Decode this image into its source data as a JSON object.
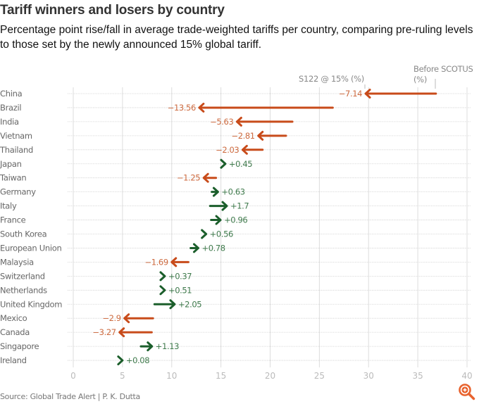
{
  "header": {
    "title": "Tariff winners and losers by country",
    "subtitle": "Percentage point rise/fall in average trade-weighted tariffs per country, comparing pre-ruling levels to those set by the newly announced 15% global tariff."
  },
  "footer": {
    "source": "Source: Global Trade Alert | P. K. Dutta",
    "zoom_icon": "zoom-in-icon"
  },
  "colors": {
    "increase": "#1b5e2b",
    "decrease": "#c84b1a",
    "increase_text": "#3f7a4c",
    "decrease_text": "#cd6a3f",
    "gridline": "#dddddd"
  },
  "chart_data": {
    "type": "arrow",
    "title": "Tariff winners and losers by country",
    "xlabel": "",
    "ylabel": "",
    "xlim": [
      0,
      40
    ],
    "xticks": [
      "0",
      "5",
      "10",
      "15",
      "20",
      "25",
      "30",
      "35",
      "40"
    ],
    "xtick_values": [
      0,
      5,
      10,
      15,
      20,
      25,
      30,
      35,
      40
    ],
    "grid": true,
    "series_labels": {
      "after": "S122 @ 15% (%)",
      "before": "Before SCOTUS (%)",
      "before_line1": "Before SCOTUS",
      "before_line2": "(%)"
    },
    "rows": [
      {
        "country": "China",
        "before": 36.84,
        "after": 29.7,
        "change": "−7.14"
      },
      {
        "country": "Brazil",
        "before": 26.36,
        "after": 12.8,
        "change": "−13.56"
      },
      {
        "country": "India",
        "before": 22.26,
        "after": 16.63,
        "change": "−5.63"
      },
      {
        "country": "Vietnam",
        "before": 21.61,
        "after": 18.8,
        "change": "−2.81"
      },
      {
        "country": "Thailand",
        "before": 19.23,
        "after": 17.2,
        "change": "−2.03"
      },
      {
        "country": "Japan",
        "before": 15.0,
        "after": 15.45,
        "change": "+0.45"
      },
      {
        "country": "Taiwan",
        "before": 14.5,
        "after": 13.25,
        "change": "−1.25"
      },
      {
        "country": "Germany",
        "before": 14.07,
        "after": 14.7,
        "change": "+0.63"
      },
      {
        "country": "Italy",
        "before": 13.9,
        "after": 15.6,
        "change": "+1.7"
      },
      {
        "country": "France",
        "before": 14.0,
        "after": 14.96,
        "change": "+0.96"
      },
      {
        "country": "South Korea",
        "before": 12.94,
        "after": 13.5,
        "change": "+0.56"
      },
      {
        "country": "European Union",
        "before": 11.92,
        "after": 12.7,
        "change": "+0.78"
      },
      {
        "country": "Malaysia",
        "before": 11.69,
        "after": 10.0,
        "change": "−1.69"
      },
      {
        "country": "Switzerland",
        "before": 8.93,
        "after": 9.3,
        "change": "+0.37"
      },
      {
        "country": "Netherlands",
        "before": 8.79,
        "after": 9.3,
        "change": "+0.51"
      },
      {
        "country": "United Kingdom",
        "before": 8.25,
        "after": 10.3,
        "change": "+2.05"
      },
      {
        "country": "Mexico",
        "before": 8.1,
        "after": 5.2,
        "change": "−2.9"
      },
      {
        "country": "Canada",
        "before": 7.97,
        "after": 4.7,
        "change": "−3.27"
      },
      {
        "country": "Singapore",
        "before": 6.87,
        "after": 8.0,
        "change": "+1.13"
      },
      {
        "country": "Ireland",
        "before": 4.92,
        "after": 5.0,
        "change": "+0.08"
      }
    ]
  }
}
